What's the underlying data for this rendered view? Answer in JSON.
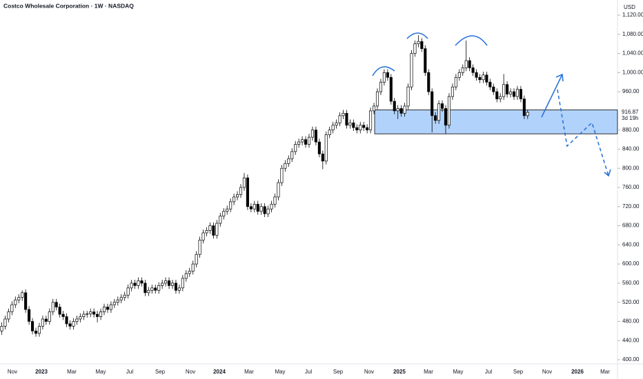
{
  "chart_data": {
    "type": "candlestick",
    "title": "Costco Wholesale Corporation · 1W · NASDAQ",
    "currency": "USD",
    "last_price_label": "916.87",
    "countdown": "3d 19h",
    "ylim": [
      400,
      1120
    ],
    "yticks": [
      {
        "value": 400,
        "label": "400.00"
      },
      {
        "value": 440,
        "label": "440.00"
      },
      {
        "value": 480,
        "label": "480.00"
      },
      {
        "value": 520,
        "label": "520.00"
      },
      {
        "value": 560,
        "label": "560.00"
      },
      {
        "value": 600,
        "label": "600.00"
      },
      {
        "value": 640,
        "label": "640.00"
      },
      {
        "value": 680,
        "label": "680.00"
      },
      {
        "value": 720,
        "label": "720.00"
      },
      {
        "value": 760,
        "label": "760.00"
      },
      {
        "value": 800,
        "label": "800.00"
      },
      {
        "value": 840,
        "label": "840.00"
      },
      {
        "value": 880,
        "label": "880.00"
      },
      {
        "value": 920,
        "label": "920.00"
      },
      {
        "value": 960,
        "label": "960.00"
      },
      {
        "value": 1000,
        "label": "1,000.00"
      },
      {
        "value": 1040,
        "label": "1,040.00"
      },
      {
        "value": 1080,
        "label": "1,080.00"
      },
      {
        "value": 1120,
        "label": "1,120.00"
      }
    ],
    "x_tick_labels": [
      "Nov",
      "2023",
      "Mar",
      "May",
      "Jul",
      "Sep",
      "Nov",
      "2024",
      "Mar",
      "May",
      "Jul",
      "Sep",
      "Nov",
      "2025",
      "Mar",
      "May",
      "Jul",
      "Sep",
      "Nov",
      "2026",
      "Mar"
    ],
    "support_zone": [
      872,
      922
    ],
    "up_color": "#ffffff",
    "down_color": "#000000",
    "zone_color": "#90bff9",
    "ohlc": [
      [
        460,
        478,
        452,
        470
      ],
      [
        470,
        492,
        463,
        485
      ],
      [
        485,
        507,
        478,
        500
      ],
      [
        500,
        522,
        493,
        515
      ],
      [
        515,
        532,
        508,
        525
      ],
      [
        525,
        537,
        518,
        530
      ],
      [
        530,
        545,
        523,
        540
      ],
      [
        540,
        547,
        498,
        505
      ],
      [
        505,
        512,
        473,
        480
      ],
      [
        480,
        487,
        453,
        460
      ],
      [
        460,
        467,
        448,
        455
      ],
      [
        455,
        477,
        448,
        470
      ],
      [
        470,
        492,
        463,
        485
      ],
      [
        485,
        492,
        473,
        480
      ],
      [
        480,
        507,
        473,
        500
      ],
      [
        500,
        527,
        493,
        520
      ],
      [
        520,
        527,
        503,
        510
      ],
      [
        510,
        517,
        488,
        495
      ],
      [
        495,
        502,
        483,
        490
      ],
      [
        490,
        497,
        468,
        475
      ],
      [
        475,
        482,
        463,
        470
      ],
      [
        470,
        487,
        463,
        480
      ],
      [
        480,
        492,
        473,
        485
      ],
      [
        485,
        497,
        478,
        490
      ],
      [
        490,
        502,
        483,
        495
      ],
      [
        495,
        502,
        488,
        496
      ],
      [
        496,
        507,
        489,
        500
      ],
      [
        500,
        507,
        488,
        495
      ],
      [
        495,
        502,
        478,
        490
      ],
      [
        490,
        507,
        483,
        500
      ],
      [
        500,
        517,
        493,
        510
      ],
      [
        510,
        517,
        498,
        505
      ],
      [
        505,
        522,
        498,
        515
      ],
      [
        515,
        527,
        508,
        520
      ],
      [
        520,
        532,
        513,
        525
      ],
      [
        525,
        537,
        518,
        530
      ],
      [
        530,
        542,
        523,
        535
      ],
      [
        535,
        557,
        528,
        550
      ],
      [
        550,
        567,
        543,
        560
      ],
      [
        560,
        567,
        548,
        555
      ],
      [
        555,
        572,
        548,
        565
      ],
      [
        565,
        572,
        553,
        560
      ],
      [
        560,
        567,
        533,
        540
      ],
      [
        540,
        552,
        533,
        545
      ],
      [
        545,
        557,
        538,
        550
      ],
      [
        550,
        557,
        538,
        545
      ],
      [
        545,
        562,
        538,
        555
      ],
      [
        555,
        567,
        548,
        560
      ],
      [
        560,
        572,
        553,
        565
      ],
      [
        565,
        572,
        548,
        555
      ],
      [
        555,
        567,
        548,
        560
      ],
      [
        560,
        567,
        538,
        545
      ],
      [
        545,
        557,
        538,
        550
      ],
      [
        550,
        577,
        543,
        570
      ],
      [
        570,
        587,
        563,
        580
      ],
      [
        580,
        592,
        573,
        585
      ],
      [
        585,
        607,
        578,
        600
      ],
      [
        600,
        627,
        593,
        620
      ],
      [
        620,
        657,
        613,
        650
      ],
      [
        650,
        672,
        643,
        665
      ],
      [
        665,
        677,
        658,
        670
      ],
      [
        670,
        687,
        663,
        680
      ],
      [
        680,
        687,
        653,
        660
      ],
      [
        660,
        692,
        653,
        685
      ],
      [
        685,
        707,
        678,
        700
      ],
      [
        700,
        717,
        693,
        710
      ],
      [
        710,
        722,
        703,
        715
      ],
      [
        715,
        737,
        708,
        730
      ],
      [
        730,
        747,
        723,
        740
      ],
      [
        740,
        752,
        733,
        745
      ],
      [
        745,
        767,
        738,
        760
      ],
      [
        760,
        790,
        753,
        780
      ],
      [
        780,
        787,
        713,
        720
      ],
      [
        720,
        727,
        708,
        715
      ],
      [
        715,
        732,
        708,
        725
      ],
      [
        725,
        732,
        703,
        710
      ],
      [
        710,
        727,
        703,
        720
      ],
      [
        720,
        727,
        698,
        705
      ],
      [
        705,
        722,
        698,
        715
      ],
      [
        715,
        732,
        708,
        725
      ],
      [
        725,
        747,
        718,
        740
      ],
      [
        740,
        777,
        733,
        770
      ],
      [
        770,
        807,
        763,
        800
      ],
      [
        800,
        817,
        793,
        810
      ],
      [
        810,
        827,
        803,
        820
      ],
      [
        820,
        842,
        813,
        835
      ],
      [
        835,
        857,
        828,
        850
      ],
      [
        850,
        862,
        843,
        855
      ],
      [
        855,
        867,
        848,
        860
      ],
      [
        860,
        867,
        843,
        850
      ],
      [
        850,
        872,
        843,
        865
      ],
      [
        865,
        887,
        858,
        880
      ],
      [
        880,
        887,
        848,
        855
      ],
      [
        855,
        862,
        823,
        830
      ],
      [
        830,
        837,
        798,
        815
      ],
      [
        815,
        877,
        808,
        870
      ],
      [
        870,
        887,
        863,
        880
      ],
      [
        880,
        897,
        873,
        890
      ],
      [
        890,
        902,
        883,
        895
      ],
      [
        895,
        917,
        888,
        910
      ],
      [
        910,
        922,
        903,
        915
      ],
      [
        915,
        922,
        883,
        890
      ],
      [
        890,
        902,
        883,
        895
      ],
      [
        895,
        902,
        878,
        885
      ],
      [
        885,
        892,
        873,
        880
      ],
      [
        880,
        897,
        873,
        890
      ],
      [
        890,
        897,
        878,
        885
      ],
      [
        885,
        892,
        873,
        880
      ],
      [
        880,
        927,
        873,
        920
      ],
      [
        920,
        937,
        913,
        930
      ],
      [
        930,
        967,
        923,
        960
      ],
      [
        960,
        987,
        953,
        980
      ],
      [
        980,
        1007,
        973,
        1000
      ],
      [
        1000,
        1007,
        983,
        990
      ],
      [
        990,
        997,
        933,
        940
      ],
      [
        940,
        947,
        913,
        920
      ],
      [
        920,
        932,
        903,
        925
      ],
      [
        925,
        932,
        908,
        915
      ],
      [
        915,
        937,
        908,
        930
      ],
      [
        930,
        977,
        923,
        970
      ],
      [
        970,
        1047,
        963,
        1040
      ],
      [
        1040,
        1067,
        1033,
        1060
      ],
      [
        1060,
        1078,
        1053,
        1065
      ],
      [
        1065,
        1072,
        1043,
        1050
      ],
      [
        1050,
        1057,
        993,
        1000
      ],
      [
        1000,
        1007,
        953,
        960
      ],
      [
        960,
        967,
        875,
        910
      ],
      [
        910,
        917,
        893,
        900
      ],
      [
        900,
        942,
        893,
        935
      ],
      [
        935,
        942,
        918,
        925
      ],
      [
        925,
        932,
        872,
        890
      ],
      [
        890,
        957,
        883,
        950
      ],
      [
        950,
        977,
        943,
        970
      ],
      [
        970,
        997,
        963,
        990
      ],
      [
        990,
        1007,
        983,
        1000
      ],
      [
        1000,
        1017,
        993,
        1010
      ],
      [
        1010,
        1067,
        1003,
        1025
      ],
      [
        1025,
        1032,
        1003,
        1010
      ],
      [
        1010,
        1017,
        993,
        1000
      ],
      [
        1000,
        1007,
        983,
        990
      ],
      [
        990,
        997,
        978,
        985
      ],
      [
        985,
        1002,
        978,
        995
      ],
      [
        995,
        1002,
        973,
        980
      ],
      [
        980,
        987,
        963,
        970
      ],
      [
        970,
        977,
        953,
        960
      ],
      [
        960,
        967,
        938,
        945
      ],
      [
        945,
        957,
        938,
        950
      ],
      [
        950,
        997,
        943,
        975
      ],
      [
        975,
        982,
        948,
        955
      ],
      [
        955,
        967,
        948,
        960
      ],
      [
        960,
        967,
        943,
        950
      ],
      [
        950,
        972,
        943,
        965
      ],
      [
        965,
        972,
        938,
        945
      ],
      [
        945,
        952,
        903,
        910
      ],
      [
        910,
        922,
        903,
        916.87
      ]
    ]
  }
}
